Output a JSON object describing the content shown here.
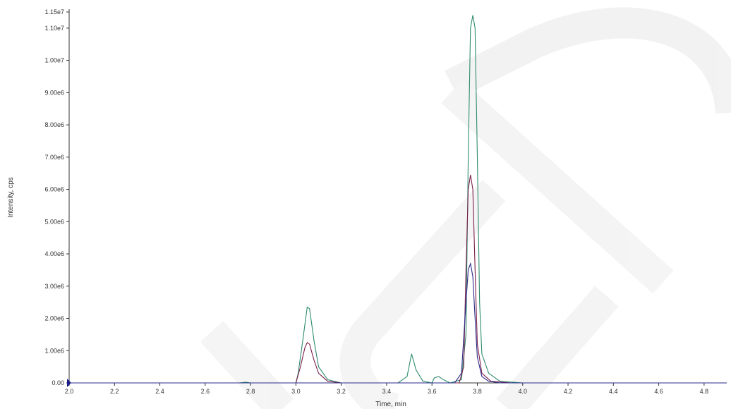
{
  "chart_data": {
    "type": "line",
    "title": "",
    "xlabel": "Time, min",
    "ylabel": "Intensity, cps",
    "xlim": [
      2.0,
      4.9
    ],
    "ylim": [
      0,
      11500000
    ],
    "grid": false,
    "x_ticks": [
      2.0,
      2.2,
      2.4,
      2.6,
      2.8,
      3.0,
      3.2,
      3.4,
      3.6,
      3.8,
      4.0,
      4.2,
      4.4,
      4.6,
      4.8
    ],
    "x_tick_labels": [
      "2.0",
      "2.2",
      "2.4",
      "2.6",
      "2.8",
      "3.0",
      "3.2",
      "3.4",
      "3.6",
      "3.8",
      "4.0",
      "4.2",
      "4.4",
      "4.6",
      "4.8"
    ],
    "y_ticks": [
      0,
      1000000,
      2000000,
      3000000,
      4000000,
      5000000,
      6000000,
      7000000,
      8000000,
      9000000,
      10000000,
      11000000,
      11500000
    ],
    "y_tick_labels": [
      "0.00",
      "1.00e6",
      "2.00e6",
      "3.00e6",
      "4.00e6",
      "5.00e6",
      "6.00e6",
      "7.00e6",
      "8.00e6",
      "9.00e6",
      "1.00e7",
      "1.10e7",
      "1.15e7"
    ],
    "series": [
      {
        "color": "#2e8b6e",
        "x": [
          2.0,
          2.75,
          2.78,
          2.8,
          3.0,
          3.01,
          3.03,
          3.05,
          3.06,
          3.08,
          3.1,
          3.14,
          3.2,
          3.45,
          3.49,
          3.51,
          3.53,
          3.56,
          3.6,
          3.61,
          3.63,
          3.65,
          3.68,
          3.73,
          3.75,
          3.76,
          3.77,
          3.78,
          3.79,
          3.8,
          3.81,
          3.82,
          3.85,
          3.9,
          4.0,
          4.9
        ],
        "y": [
          0,
          0,
          20000,
          0,
          0,
          300000,
          1300000,
          2350000,
          2300000,
          1300000,
          500000,
          100000,
          0,
          0,
          200000,
          900000,
          400000,
          50000,
          0,
          150000,
          200000,
          100000,
          0,
          100000,
          1500000,
          7000000,
          11000000,
          11400000,
          11000000,
          7000000,
          2500000,
          900000,
          300000,
          50000,
          0,
          0
        ]
      },
      {
        "color": "#7a1f4a",
        "x": [
          2.0,
          3.0,
          3.02,
          3.04,
          3.05,
          3.06,
          3.08,
          3.1,
          3.14,
          3.2,
          3.72,
          3.74,
          3.75,
          3.76,
          3.77,
          3.78,
          3.79,
          3.8,
          3.82,
          3.86,
          3.95,
          4.9
        ],
        "y": [
          0,
          0,
          500000,
          1100000,
          1250000,
          1200000,
          700000,
          300000,
          50000,
          0,
          0,
          500000,
          3500000,
          6000000,
          6450000,
          6000000,
          3500000,
          1200000,
          300000,
          50000,
          0,
          0
        ]
      },
      {
        "color": "#2a2a8a",
        "x": [
          2.0,
          3.7,
          3.73,
          3.75,
          3.76,
          3.77,
          3.78,
          3.79,
          3.8,
          3.82,
          3.85,
          3.9,
          4.9
        ],
        "y": [
          0,
          0,
          300000,
          2500000,
          3500000,
          3700000,
          3300000,
          2000000,
          800000,
          200000,
          50000,
          0,
          0
        ]
      }
    ]
  }
}
